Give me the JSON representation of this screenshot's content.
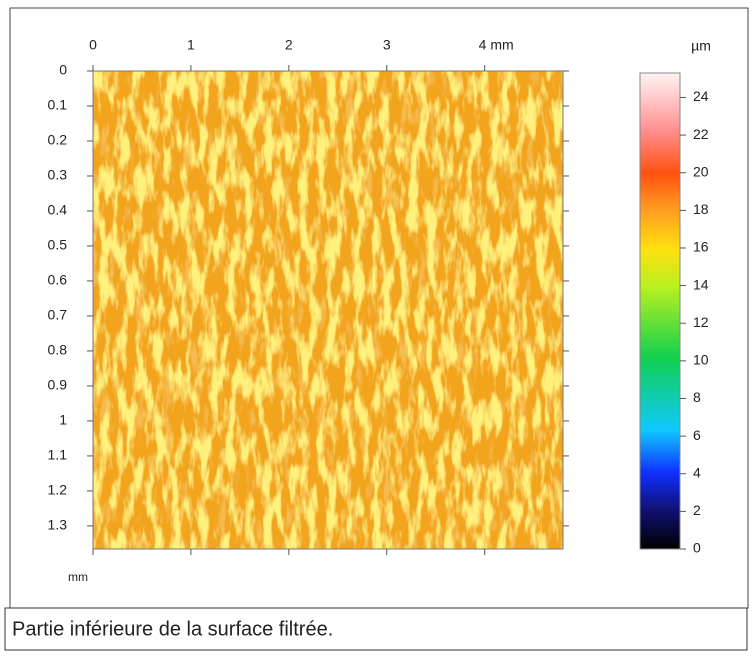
{
  "chart_data": {
    "type": "heatmap",
    "xticks": [
      0,
      1,
      2,
      3,
      {
        "value": 4,
        "label": "4 mm"
      }
    ],
    "xlim": [
      0,
      4.8
    ],
    "yticks": [
      0,
      0.1,
      0.2,
      0.3,
      0.4,
      0.5,
      0.6,
      0.7,
      0.8,
      0.9,
      1,
      1.1,
      1.2,
      1.3
    ],
    "ylim": [
      0,
      1.366
    ],
    "y_label": "mm",
    "colorbar": {
      "label": "µm",
      "lim": [
        0,
        25.3
      ],
      "ticks": [
        0,
        2,
        4,
        6,
        8,
        10,
        12,
        14,
        16,
        18,
        20,
        22,
        24
      ]
    },
    "caption": "Partie inférieure de la surface filtrée."
  }
}
